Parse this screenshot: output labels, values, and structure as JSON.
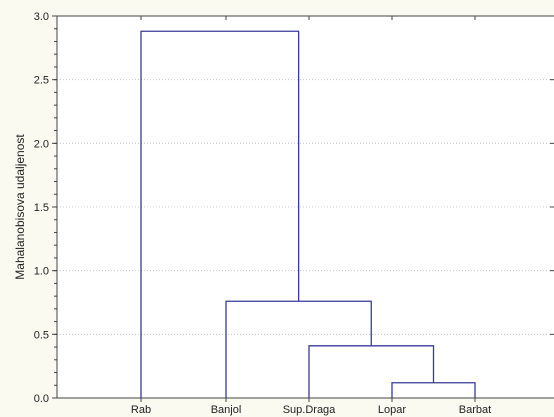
{
  "chart_data": {
    "type": "dendrogram",
    "ylabel": "Mahalanobisova udaljenost",
    "ylim": [
      0,
      3
    ],
    "yticks": [
      "0.0",
      "0.5",
      "1.0",
      "1.5",
      "2.0",
      "2.5",
      "3.0"
    ],
    "leaves": [
      "Rab",
      "Banjol",
      "Sup.Draga",
      "Lopar",
      "Barbat"
    ],
    "merges": [
      {
        "left": "Lopar",
        "right": "Barbat",
        "height": 0.12
      },
      {
        "left": "Sup.Draga",
        "right": "Lopar + Barbat",
        "height": 0.41
      },
      {
        "left": "Banjol",
        "right": "Sup.Draga + Lopar + Barbat",
        "height": 0.76
      },
      {
        "left": "Rab",
        "right": "Banjol + Sup.Draga + Lopar + Barbat",
        "height": 2.88
      }
    ],
    "grid": "horizontal dotted",
    "colors": {
      "background": "#fbfaf0",
      "plot_area": "#ffffff",
      "branches": "#3a3a9a",
      "axis": "#444444",
      "grid": "#c8c8c8"
    }
  }
}
